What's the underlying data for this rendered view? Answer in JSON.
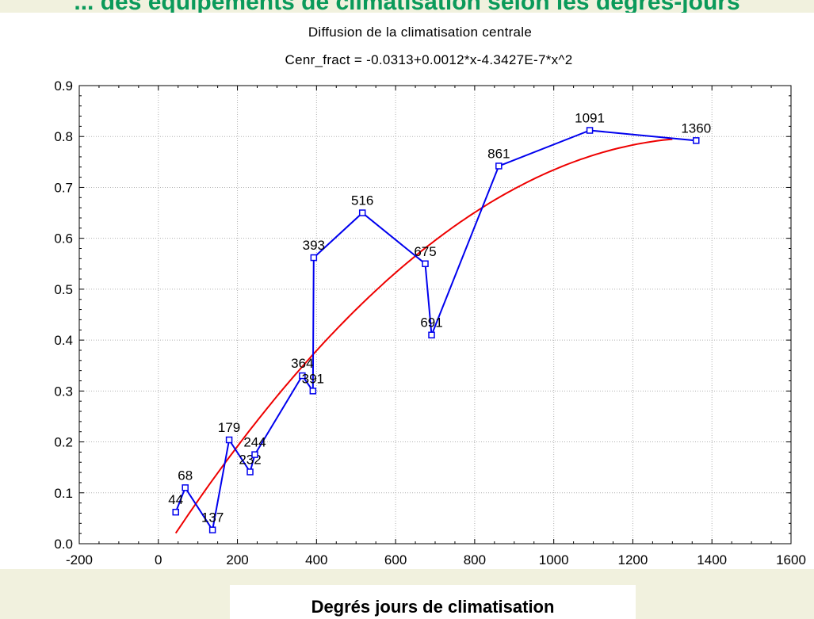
{
  "page": {
    "top_title": "... des équipements de climatisation selon les degrés-jours"
  },
  "chart_data": {
    "type": "line",
    "title": "Diffusion de la climatisation centrale",
    "subtitle": "Cenr_fract = -0.0313+0.0012*x-4.3427E-7*x^2",
    "xlabel": "Degrés jours de climatisation",
    "ylabel": "",
    "xlim": [
      -200,
      1600
    ],
    "ylim": [
      0.0,
      0.9
    ],
    "x_ticks": [
      -200,
      0,
      200,
      400,
      600,
      800,
      1000,
      1200,
      1400,
      1600
    ],
    "y_ticks": [
      0.0,
      0.1,
      0.2,
      0.3,
      0.4,
      0.5,
      0.6,
      0.7,
      0.8,
      0.9
    ],
    "grid": true,
    "series": [
      {
        "type": "line-markers",
        "color": "#0000ee",
        "x": [
          44,
          68,
          137,
          179,
          232,
          244,
          364,
          391,
          393,
          516,
          675,
          691,
          861,
          1091,
          1360
        ],
        "y": [
          0.062,
          0.11,
          0.027,
          0.204,
          0.141,
          0.175,
          0.33,
          0.3,
          0.562,
          0.65,
          0.55,
          0.41,
          0.742,
          0.812,
          0.792
        ],
        "point_labels": [
          "44",
          "68",
          "137",
          "179",
          "232",
          "244",
          "364",
          "391",
          "393",
          "516",
          "675",
          "691",
          "861",
          "1091",
          "1360"
        ]
      },
      {
        "type": "fit-curve",
        "color": "#ee0000",
        "equation": {
          "a": -0.0313,
          "b": 0.0012,
          "c": -4.3427e-07
        },
        "x_range": [
          44,
          1300
        ]
      }
    ]
  }
}
